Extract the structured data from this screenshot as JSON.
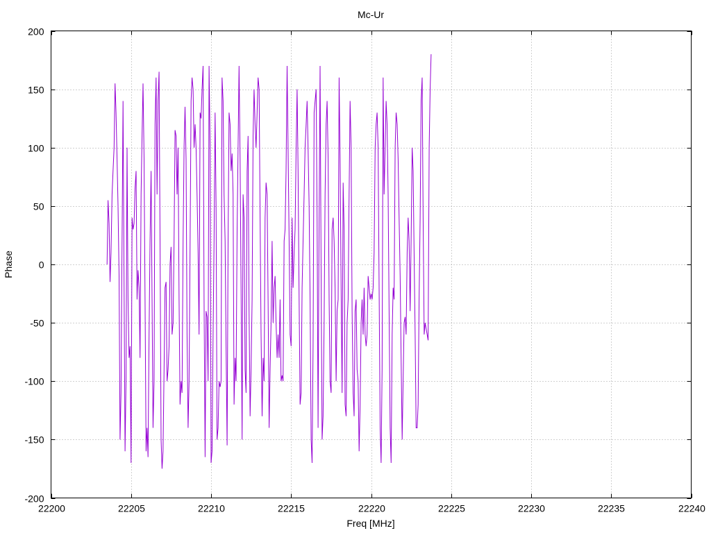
{
  "chart_data": {
    "type": "line",
    "title": "Mc-Ur",
    "xlabel": "Freq [MHz]",
    "ylabel": "Phase",
    "xlim": [
      22200,
      22240
    ],
    "ylim": [
      -200,
      200
    ],
    "x_ticks": [
      22200,
      22205,
      22210,
      22215,
      22220,
      22225,
      22230,
      22235,
      22240
    ],
    "y_ticks": [
      -200,
      -150,
      -100,
      -50,
      0,
      50,
      100,
      150,
      200
    ],
    "grid": true,
    "series": [
      {
        "color": "#9400d3",
        "x_start": 22203.5,
        "x_step": 0.0625,
        "values": [
          0,
          55,
          35,
          -15,
          10,
          60,
          80,
          100,
          155,
          130,
          90,
          50,
          -10,
          -150,
          -110,
          20,
          140,
          -20,
          -160,
          -100,
          100,
          -30,
          -80,
          -70,
          -170,
          40,
          30,
          35,
          65,
          80,
          -30,
          -5,
          -20,
          -80,
          60,
          110,
          155,
          90,
          -30,
          -160,
          -140,
          -165,
          -60,
          20,
          80,
          -30,
          -140,
          -100,
          120,
          160,
          60,
          140,
          165,
          20,
          -150,
          -175,
          -160,
          -90,
          -20,
          -15,
          -100,
          -90,
          -70,
          0,
          15,
          -60,
          -50,
          20,
          115,
          110,
          60,
          100,
          -30,
          -120,
          -100,
          -110,
          20,
          100,
          135,
          90,
          -60,
          -140,
          -100,
          10,
          140,
          160,
          150,
          100,
          120,
          100,
          60,
          10,
          -60,
          130,
          125,
          150,
          170,
          -30,
          -165,
          -40,
          -45,
          -100,
          170,
          100,
          -170,
          -160,
          -60,
          20,
          130,
          50,
          -150,
          -140,
          -100,
          -105,
          -100,
          160,
          140,
          60,
          20,
          -70,
          -155,
          20,
          130,
          120,
          80,
          95,
          60,
          -120,
          -80,
          -100,
          30,
          100,
          170,
          90,
          -20,
          -150,
          60,
          40,
          -90,
          -110,
          80,
          110,
          -40,
          -130,
          -90,
          -30,
          110,
          150,
          120,
          100,
          130,
          160,
          150,
          40,
          -60,
          -130,
          -80,
          -100,
          40,
          70,
          60,
          -30,
          -140,
          -90,
          -50,
          20,
          -50,
          -20,
          -10,
          -50,
          -80,
          -60,
          -80,
          -30,
          -100,
          -95,
          -100,
          20,
          30,
          80,
          170,
          100,
          20,
          -60,
          -70,
          40,
          -20,
          10,
          30,
          100,
          150,
          80,
          -30,
          -120,
          -110,
          -20,
          20,
          60,
          100,
          120,
          140,
          100,
          50,
          -30,
          -150,
          -170,
          -70,
          130,
          140,
          150,
          40,
          -140,
          40,
          170,
          -10,
          -150,
          -130,
          -50,
          60,
          120,
          140,
          90,
          -30,
          -100,
          -110,
          30,
          40,
          20,
          -20,
          -100,
          -40,
          -30,
          160,
          90,
          -20,
          -110,
          70,
          30,
          -120,
          -130,
          -50,
          -30,
          60,
          140,
          100,
          -40,
          -110,
          -130,
          -40,
          -30,
          -90,
          -100,
          -160,
          -120,
          -50,
          -30,
          -60,
          -20,
          -60,
          -70,
          -60,
          -10,
          -20,
          -30,
          -25,
          -30,
          -20,
          10,
          100,
          120,
          130,
          100,
          -20,
          -140,
          -170,
          -90,
          160,
          60,
          100,
          140,
          120,
          60,
          -40,
          -140,
          -170,
          -60,
          -20,
          -30,
          100,
          130,
          120,
          90,
          40,
          -10,
          -80,
          -150,
          -100,
          -50,
          -45,
          -60,
          10,
          40,
          20,
          -40,
          20,
          100,
          80,
          10,
          -60,
          -140,
          -140,
          -120,
          -30,
          40,
          140,
          160,
          40,
          -60,
          -50,
          -55,
          -60,
          -65,
          100,
          150,
          180
        ]
      }
    ]
  }
}
